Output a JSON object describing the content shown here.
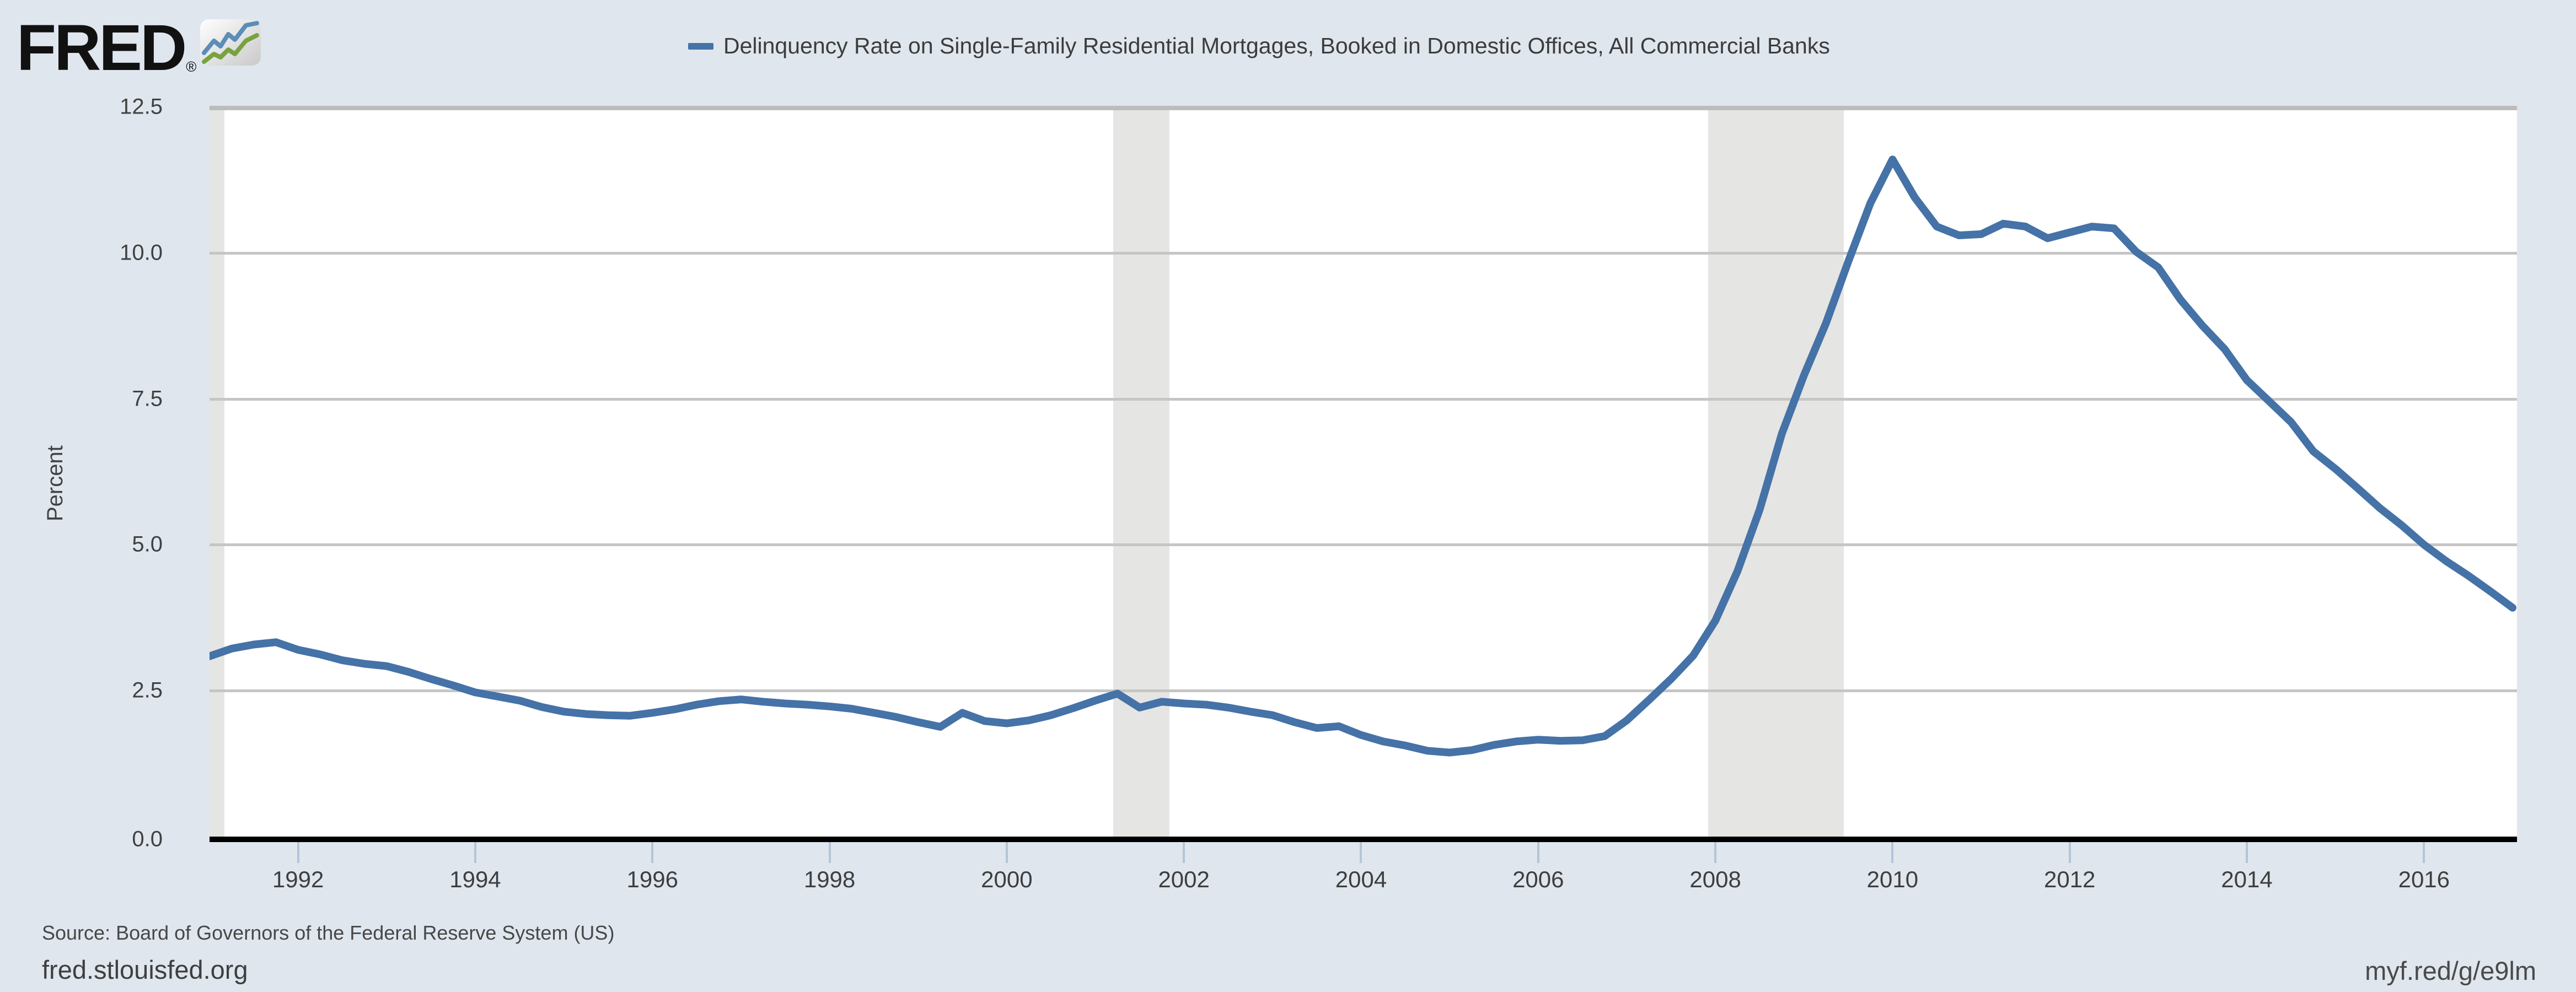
{
  "header": {
    "logo_text": "FRED",
    "logo_reg": "®",
    "legend_label": "Delinquency Rate on Single-Family Residential Mortgages, Booked in Domestic Offices, All Commercial Banks"
  },
  "footer": {
    "source": "Source: Board of Governors of the Federal Reserve System (US)",
    "site_url": "fred.stlouisfed.org",
    "short_url": "myf.red/g/e9lm"
  },
  "colors": {
    "line": "#4572a7",
    "background": "#dfe6ee",
    "plot_background": "#ffffff",
    "recession_band": "#e5e5e3",
    "gridline": "#c5c5c5",
    "axis_line": "#000000",
    "tick": "#b3c5d8",
    "logo_icon_blue": "#5b8db8",
    "logo_icon_green": "#77a23f"
  },
  "chart_data": {
    "type": "line",
    "title": "Delinquency Rate on Single-Family Residential Mortgages, Booked in Domestic Offices, All Commercial Banks",
    "ylabel": "Percent",
    "xlabel": "",
    "grid": true,
    "legend_position": "top-center",
    "xlim": [
      1991.0,
      2017.05
    ],
    "ylim": [
      0,
      12.5
    ],
    "yticks": [
      {
        "value": 0,
        "label": "0.0"
      },
      {
        "value": 2.5,
        "label": "2.5"
      },
      {
        "value": 5,
        "label": "5.0"
      },
      {
        "value": 7.5,
        "label": "7.5"
      },
      {
        "value": 10,
        "label": "10.0"
      },
      {
        "value": 12.5,
        "label": "12.5"
      }
    ],
    "xticks": [
      {
        "value": 1992,
        "label": "1992"
      },
      {
        "value": 1994,
        "label": "1994"
      },
      {
        "value": 1996,
        "label": "1996"
      },
      {
        "value": 1998,
        "label": "1998"
      },
      {
        "value": 2000,
        "label": "2000"
      },
      {
        "value": 2002,
        "label": "2002"
      },
      {
        "value": 2004,
        "label": "2004"
      },
      {
        "value": 2006,
        "label": "2006"
      },
      {
        "value": 2008,
        "label": "2008"
      },
      {
        "value": 2010,
        "label": "2010"
      },
      {
        "value": 2012,
        "label": "2012"
      },
      {
        "value": 2014,
        "label": "2014"
      },
      {
        "value": 2016,
        "label": "2016"
      }
    ],
    "recession_bands": [
      [
        1991.0,
        1991.17
      ],
      [
        2001.2,
        2001.84
      ],
      [
        2007.92,
        2009.45
      ]
    ],
    "series": [
      {
        "name": "Delinquency Rate on Single-Family Residential Mortgages, Booked in Domestic Offices, All Commercial Banks",
        "frequency": "quarterly",
        "x_start": 1991.0,
        "x_step": 0.25,
        "values": [
          3.09,
          3.22,
          3.29,
          3.33,
          3.2,
          3.12,
          3.02,
          2.96,
          2.92,
          2.82,
          2.7,
          2.59,
          2.47,
          2.4,
          2.33,
          2.22,
          2.14,
          2.1,
          2.08,
          2.07,
          2.12,
          2.18,
          2.26,
          2.32,
          2.35,
          2.31,
          2.28,
          2.26,
          2.23,
          2.19,
          2.12,
          2.05,
          1.96,
          1.88,
          2.12,
          1.98,
          1.94,
          1.99,
          2.08,
          2.2,
          2.33,
          2.45,
          2.21,
          2.31,
          2.28,
          2.26,
          2.21,
          2.14,
          2.08,
          1.96,
          1.86,
          1.89,
          1.74,
          1.63,
          1.56,
          1.47,
          1.44,
          1.48,
          1.57,
          1.63,
          1.66,
          1.64,
          1.65,
          1.72,
          1.99,
          2.34,
          2.7,
          3.1,
          3.7,
          4.55,
          5.6,
          6.9,
          7.9,
          8.8,
          9.85,
          10.85,
          11.6,
          10.95,
          10.45,
          10.3,
          10.32,
          10.5,
          10.45,
          10.25,
          10.35,
          10.45,
          10.42,
          10.02,
          9.75,
          9.2,
          8.75,
          8.35,
          7.82,
          7.46,
          7.1,
          6.6,
          6.3,
          5.97,
          5.63,
          5.33,
          5.0,
          4.72,
          4.47,
          4.2,
          3.92
        ]
      }
    ]
  },
  "layout_note": "quarterly line chart, fred.stlouisfed.org style"
}
